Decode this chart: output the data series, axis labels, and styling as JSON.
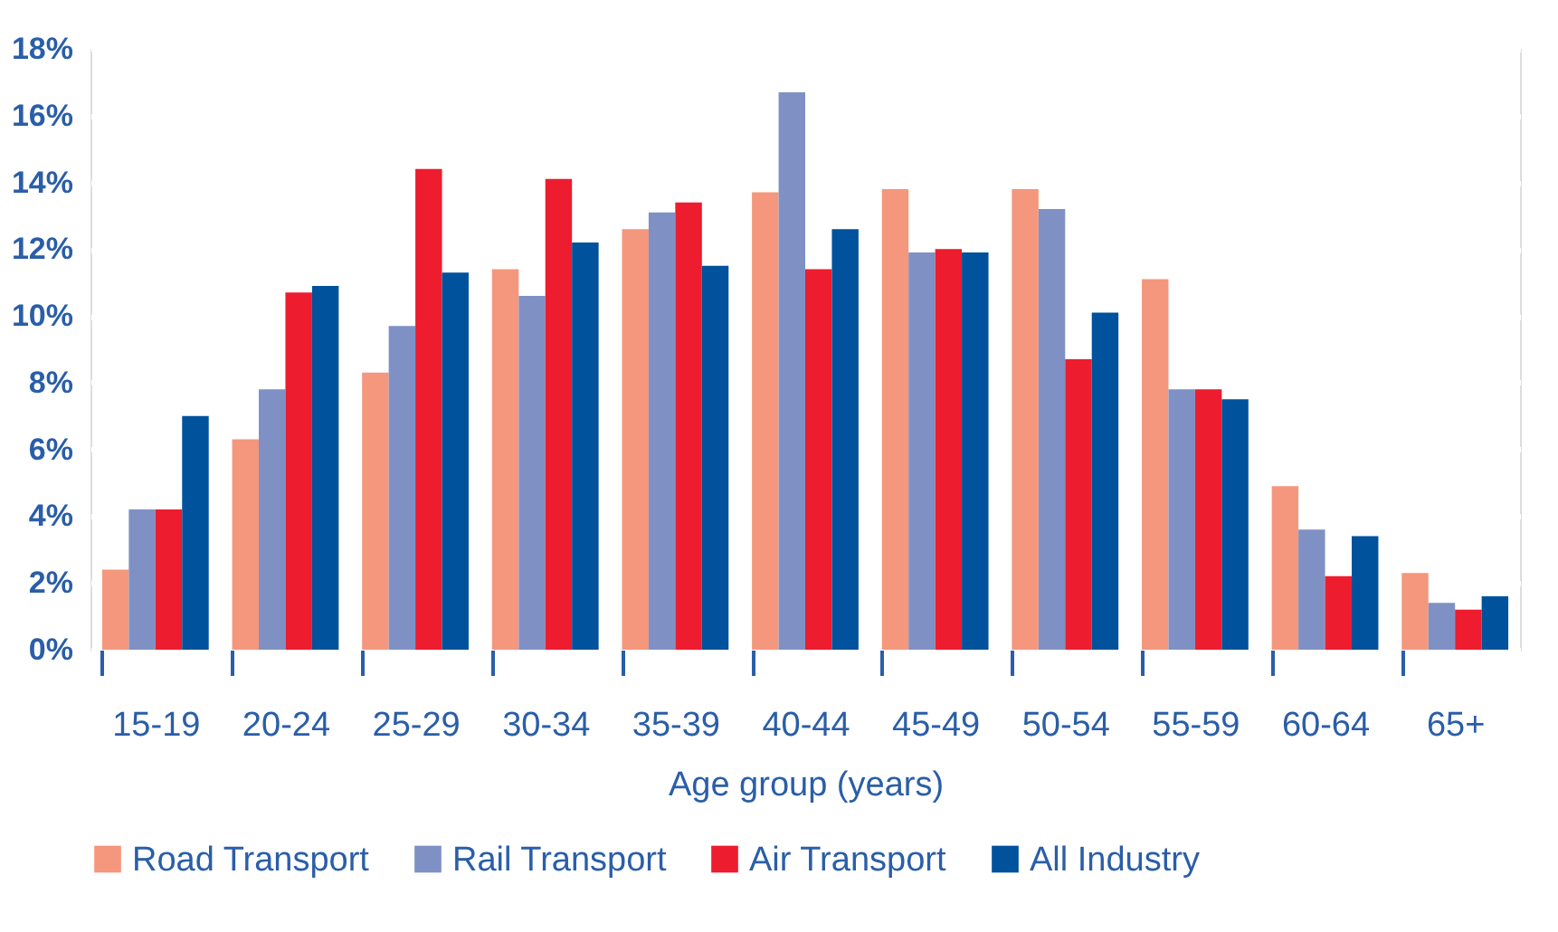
{
  "chart_data": {
    "type": "bar",
    "xlabel": "Age group (years)",
    "categories": [
      "15-19",
      "20-24",
      "25-29",
      "30-34",
      "35-39",
      "40-44",
      "45-49",
      "50-54",
      "55-59",
      "60-64",
      "65+"
    ],
    "series": [
      {
        "name": "Road Transport",
        "color": "#f4977c",
        "values": [
          2.4,
          6.3,
          8.3,
          11.4,
          12.6,
          13.7,
          13.8,
          13.8,
          11.1,
          4.9,
          2.3
        ]
      },
      {
        "name": "Rail Transport",
        "color": "#7f91c4",
        "values": [
          4.2,
          7.8,
          9.7,
          10.6,
          13.1,
          16.7,
          11.9,
          13.2,
          7.8,
          3.6,
          1.4
        ]
      },
      {
        "name": "Air Transport",
        "color": "#ed1c2e",
        "values": [
          4.2,
          10.7,
          14.4,
          14.1,
          13.4,
          11.4,
          12.0,
          8.7,
          7.8,
          2.2,
          1.2
        ]
      },
      {
        "name": "All Industry",
        "color": "#00529c",
        "values": [
          7.0,
          10.9,
          11.3,
          12.2,
          11.5,
          12.6,
          11.9,
          10.1,
          7.5,
          3.4,
          1.6
        ]
      }
    ],
    "ylim": [
      0,
      18
    ],
    "yticks": [
      {
        "value": 0,
        "label": "0%"
      },
      {
        "value": 2,
        "label": "2%"
      },
      {
        "value": 4,
        "label": "4%"
      },
      {
        "value": 6,
        "label": "6%"
      },
      {
        "value": 8,
        "label": "8%"
      },
      {
        "value": 10,
        "label": "10%"
      },
      {
        "value": 12,
        "label": "12%"
      },
      {
        "value": 14,
        "label": "14%"
      },
      {
        "value": 16,
        "label": "16%"
      },
      {
        "value": 18,
        "label": "18%"
      }
    ],
    "grid": "y",
    "legend": "bottom"
  }
}
